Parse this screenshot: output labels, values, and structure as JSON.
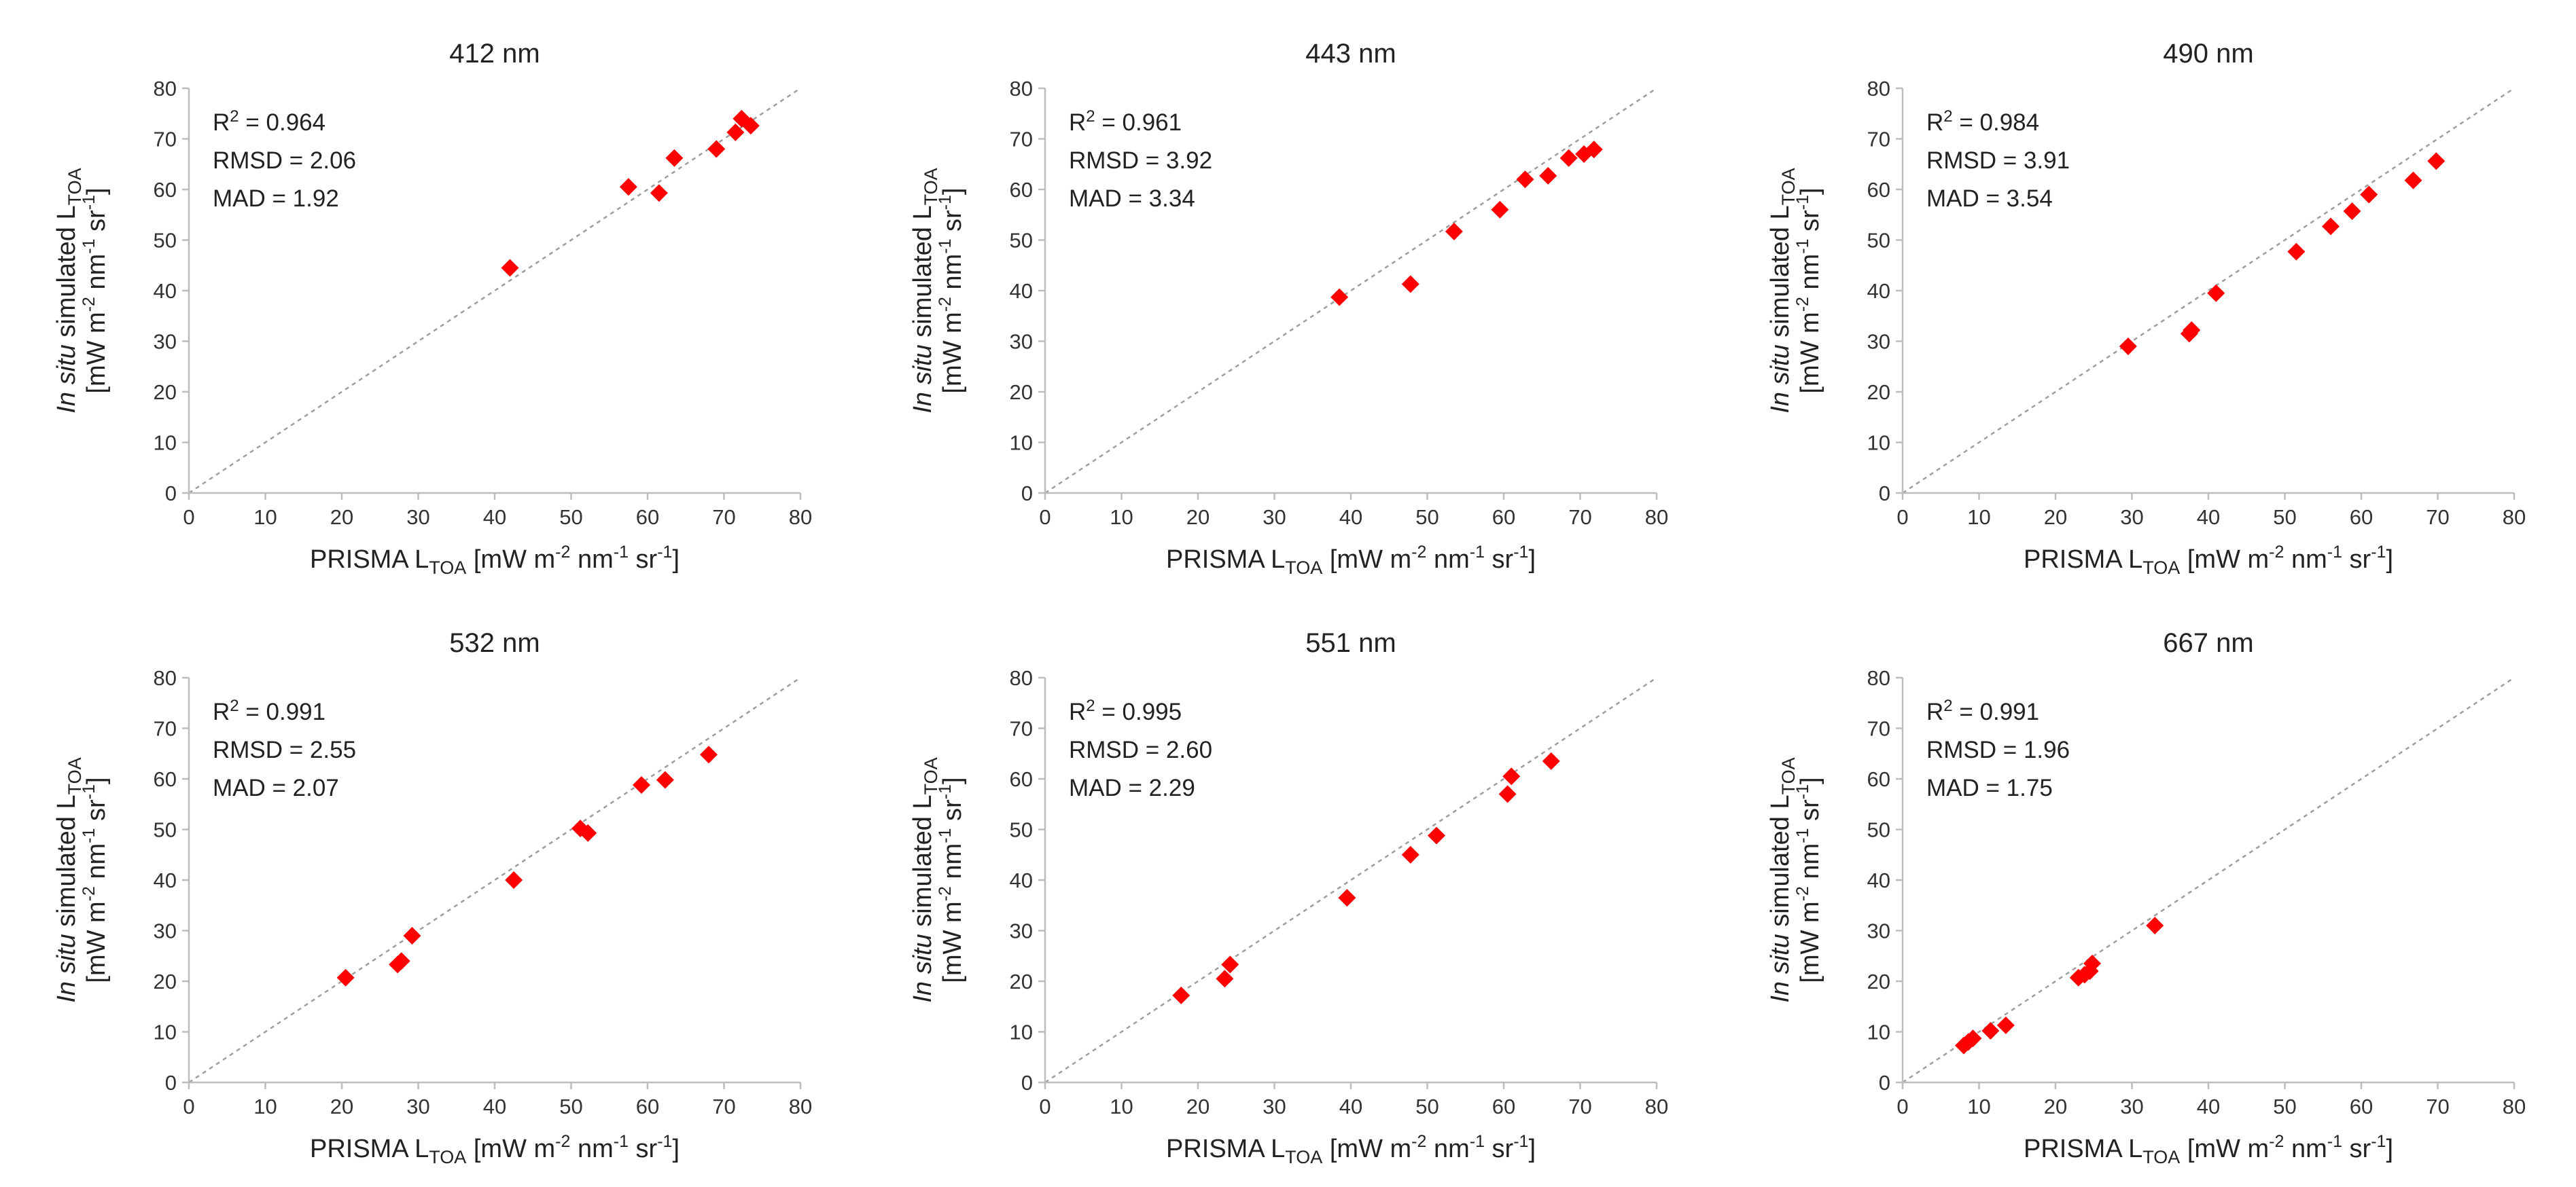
{
  "colors": {
    "marker": "#ff0000",
    "identity_line": "#9e9e9e",
    "axis": "#bdbdbd"
  },
  "chart_data": [
    {
      "type": "scatter",
      "title": "412 nm",
      "xlabel": {
        "prefix": "PRISMA L",
        "sub": "TOA",
        "units": " [mW m",
        "u1": "-2",
        "u2": " nm",
        "u3": "-1",
        "u4": " sr",
        "u5": "-1",
        "u6": "]"
      },
      "ylabel": {
        "italic": "In situ",
        "rest": " simulated L",
        "sub": "TOA",
        "units": "[mW m",
        "u1": "-2",
        "u2": " nm",
        "u3": "-1",
        "u4": " sr",
        "u5": "-1",
        "u6": "]"
      },
      "xlim": [
        0,
        80
      ],
      "ylim": [
        0,
        80
      ],
      "ticks": [
        0,
        10,
        20,
        30,
        40,
        50,
        60,
        70,
        80
      ],
      "stats": {
        "r2_label": "R",
        "r2_sup": "2",
        "r2_value": " = 0.964",
        "rmsd": "RMSD = 2.06",
        "mad": "MAD = 1.92"
      },
      "points": [
        [
          42,
          44.5
        ],
        [
          57.5,
          60.5
        ],
        [
          61.5,
          59.3
        ],
        [
          63.5,
          66.2
        ],
        [
          69,
          68
        ],
        [
          71.5,
          71.3
        ],
        [
          72.3,
          74
        ],
        [
          73.5,
          72.6
        ]
      ]
    },
    {
      "type": "scatter",
      "title": "443 nm",
      "xlabel": {
        "prefix": "PRISMA L",
        "sub": "TOA",
        "units": " [mW m",
        "u1": "-2",
        "u2": " nm",
        "u3": "-1",
        "u4": " sr",
        "u5": "-1",
        "u6": "]"
      },
      "ylabel": {
        "italic": "In situ",
        "rest": " simulated L",
        "sub": "TOA",
        "units": "[mW m",
        "u1": "-2",
        "u2": " nm",
        "u3": "-1",
        "u4": " sr",
        "u5": "-1",
        "u6": "]"
      },
      "xlim": [
        0,
        80
      ],
      "ylim": [
        0,
        80
      ],
      "ticks": [
        0,
        10,
        20,
        30,
        40,
        50,
        60,
        70,
        80
      ],
      "stats": {
        "r2_label": "R",
        "r2_sup": "2",
        "r2_value": " = 0.961",
        "rmsd": "RMSD = 3.92",
        "mad": "MAD = 3.34"
      },
      "points": [
        [
          38.5,
          38.7
        ],
        [
          47.8,
          41.3
        ],
        [
          53.5,
          51.7
        ],
        [
          59.5,
          56
        ],
        [
          62.8,
          62
        ],
        [
          65.8,
          62.7
        ],
        [
          68.5,
          66.2
        ],
        [
          70.5,
          67
        ],
        [
          71.8,
          67.9
        ]
      ]
    },
    {
      "type": "scatter",
      "title": "490 nm",
      "xlabel": {
        "prefix": "PRISMA L",
        "sub": "TOA",
        "units": " [mW m",
        "u1": "-2",
        "u2": " nm",
        "u3": "-1",
        "u4": " sr",
        "u5": "-1",
        "u6": "]"
      },
      "ylabel": {
        "italic": "In situ",
        "rest": " simulated L",
        "sub": "TOA",
        "units": "[mW m",
        "u1": "-2",
        "u2": " nm",
        "u3": "-1",
        "u4": " sr",
        "u5": "-1",
        "u6": "]"
      },
      "xlim": [
        0,
        80
      ],
      "ylim": [
        0,
        80
      ],
      "ticks": [
        0,
        10,
        20,
        30,
        40,
        50,
        60,
        70,
        80
      ],
      "stats": {
        "r2_label": "R",
        "r2_sup": "2",
        "r2_value": " = 0.984",
        "rmsd": "RMSD = 3.91",
        "mad": "MAD = 3.54"
      },
      "points": [
        [
          29.5,
          29
        ],
        [
          37.5,
          31.5
        ],
        [
          37.8,
          32.2
        ],
        [
          41,
          39.5
        ],
        [
          51.5,
          47.7
        ],
        [
          56,
          52.7
        ],
        [
          58.8,
          55.7
        ],
        [
          61,
          59
        ],
        [
          66.8,
          61.8
        ],
        [
          69.8,
          65.6
        ]
      ]
    },
    {
      "type": "scatter",
      "title": "532 nm",
      "xlabel": {
        "prefix": "PRISMA L",
        "sub": "TOA",
        "units": " [mW m",
        "u1": "-2",
        "u2": " nm",
        "u3": "-1",
        "u4": " sr",
        "u5": "-1",
        "u6": "]"
      },
      "ylabel": {
        "italic": "In situ",
        "rest": " simulated L",
        "sub": "TOA",
        "units": "[mW m",
        "u1": "-2",
        "u2": " nm",
        "u3": "-1",
        "u4": " sr",
        "u5": "-1",
        "u6": "]"
      },
      "xlim": [
        0,
        80
      ],
      "ylim": [
        0,
        80
      ],
      "ticks": [
        0,
        10,
        20,
        30,
        40,
        50,
        60,
        70,
        80
      ],
      "stats": {
        "r2_label": "R",
        "r2_sup": "2",
        "r2_value": " = 0.991",
        "rmsd": "RMSD = 2.55",
        "mad": "MAD = 2.07"
      },
      "points": [
        [
          20.5,
          20.7
        ],
        [
          27.3,
          23.3
        ],
        [
          27.8,
          24
        ],
        [
          29.2,
          29
        ],
        [
          42.5,
          40
        ],
        [
          51.2,
          50.2
        ],
        [
          52.2,
          49.3
        ],
        [
          59.2,
          58.8
        ],
        [
          62.3,
          59.8
        ],
        [
          68,
          64.8
        ]
      ]
    },
    {
      "type": "scatter",
      "title": "551 nm",
      "xlabel": {
        "prefix": "PRISMA L",
        "sub": "TOA",
        "units": " [mW m",
        "u1": "-2",
        "u2": " nm",
        "u3": "-1",
        "u4": " sr",
        "u5": "-1",
        "u6": "]"
      },
      "ylabel": {
        "italic": "In situ",
        "rest": " simulated L",
        "sub": "TOA",
        "units": "[mW m",
        "u1": "-2",
        "u2": " nm",
        "u3": "-1",
        "u4": " sr",
        "u5": "-1",
        "u6": "]"
      },
      "xlim": [
        0,
        80
      ],
      "ylim": [
        0,
        80
      ],
      "ticks": [
        0,
        10,
        20,
        30,
        40,
        50,
        60,
        70,
        80
      ],
      "stats": {
        "r2_label": "R",
        "r2_sup": "2",
        "r2_value": " = 0.995",
        "rmsd": "RMSD = 2.60",
        "mad": "MAD = 2.29"
      },
      "points": [
        [
          17.8,
          17.2
        ],
        [
          23.5,
          20.5
        ],
        [
          24.2,
          23.3
        ],
        [
          39.5,
          36.5
        ],
        [
          47.8,
          45
        ],
        [
          51.2,
          48.8
        ],
        [
          60.5,
          57
        ],
        [
          61,
          60.5
        ],
        [
          66.2,
          63.5
        ]
      ]
    },
    {
      "type": "scatter",
      "title": "667 nm",
      "xlabel": {
        "prefix": "PRISMA L",
        "sub": "TOA",
        "units": " [mW m",
        "u1": "-2",
        "u2": " nm",
        "u3": "-1",
        "u4": " sr",
        "u5": "-1",
        "u6": "]"
      },
      "ylabel": {
        "italic": "In situ",
        "rest": " simulated L",
        "sub": "TOA",
        "units": "[mW m",
        "u1": "-2",
        "u2": " nm",
        "u3": "-1",
        "u4": " sr",
        "u5": "-1",
        "u6": "]"
      },
      "xlim": [
        0,
        80
      ],
      "ylim": [
        0,
        80
      ],
      "ticks": [
        0,
        10,
        20,
        30,
        40,
        50,
        60,
        70,
        80
      ],
      "stats": {
        "r2_label": "R",
        "r2_sup": "2",
        "r2_value": " = 0.991",
        "rmsd": "RMSD = 1.96",
        "mad": "MAD = 1.75"
      },
      "points": [
        [
          8,
          7.3
        ],
        [
          8.6,
          8
        ],
        [
          9.2,
          8.7
        ],
        [
          11.5,
          10.2
        ],
        [
          13.5,
          11.3
        ],
        [
          23,
          20.7
        ],
        [
          23.8,
          21.3
        ],
        [
          24.5,
          22
        ],
        [
          24.8,
          23.5
        ],
        [
          33,
          31
        ]
      ]
    }
  ]
}
